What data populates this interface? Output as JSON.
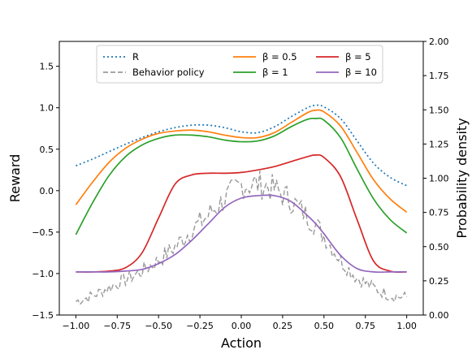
{
  "chart_data": {
    "type": "line",
    "xlabel": "Action",
    "ylabel_left": "Reward",
    "ylabel_right": "Probability density",
    "xlim": [
      -1.1,
      1.1
    ],
    "ylim_left": [
      -1.5,
      1.8
    ],
    "ylim_right": [
      0.0,
      2.0
    ],
    "xticks": [
      "−1.00",
      "−0.75",
      "−0.50",
      "−0.25",
      "0.00",
      "0.25",
      "0.50",
      "0.75",
      "1.00"
    ],
    "yticks_left": [
      "−1.5",
      "−1.0",
      "−0.5",
      "0.0",
      "0.5",
      "1.0",
      "1.5"
    ],
    "yticks_right": [
      "0.00",
      "0.25",
      "0.50",
      "0.75",
      "1.00",
      "1.25",
      "1.50",
      "1.75",
      "2.00"
    ],
    "legend_position": "top-center",
    "x": [
      -1.0,
      -0.9,
      -0.8,
      -0.7,
      -0.6,
      -0.5,
      -0.4,
      -0.3,
      -0.2,
      -0.1,
      0.0,
      0.1,
      0.2,
      0.3,
      0.4,
      0.45,
      0.5,
      0.6,
      0.7,
      0.8,
      0.9,
      1.0
    ],
    "series": [
      {
        "name": "R",
        "axis": "left",
        "style": "dotted",
        "color": "#1f77b4",
        "values": [
          0.3,
          0.38,
          0.47,
          0.56,
          0.64,
          0.71,
          0.76,
          0.79,
          0.79,
          0.76,
          0.71,
          0.7,
          0.77,
          0.89,
          1.0,
          1.03,
          1.01,
          0.87,
          0.6,
          0.33,
          0.16,
          0.06
        ]
      },
      {
        "name": "Behavior policy",
        "axis": "right",
        "style": "dashed",
        "color": "#999999",
        "values": [
          0.1,
          0.14,
          0.2,
          0.26,
          0.32,
          0.4,
          0.5,
          0.62,
          0.73,
          0.85,
          0.95,
          0.96,
          0.92,
          0.84,
          0.72,
          0.66,
          0.58,
          0.4,
          0.27,
          0.2,
          0.14,
          0.13
        ]
      },
      {
        "name": "β = 0.5",
        "axis": "left",
        "style": "solid",
        "color": "#ff7f0e",
        "values": [
          -0.17,
          0.1,
          0.34,
          0.51,
          0.62,
          0.69,
          0.72,
          0.73,
          0.71,
          0.67,
          0.64,
          0.64,
          0.7,
          0.82,
          0.94,
          0.97,
          0.95,
          0.78,
          0.46,
          0.13,
          -0.1,
          -0.26
        ]
      },
      {
        "name": "β = 1",
        "axis": "left",
        "style": "solid",
        "color": "#2ca02c",
        "values": [
          -0.53,
          -0.15,
          0.18,
          0.41,
          0.55,
          0.63,
          0.67,
          0.67,
          0.65,
          0.61,
          0.59,
          0.6,
          0.66,
          0.77,
          0.86,
          0.87,
          0.85,
          0.64,
          0.26,
          -0.1,
          -0.35,
          -0.51
        ]
      },
      {
        "name": "β = 5",
        "axis": "left",
        "style": "solid",
        "color": "#d62728",
        "values": [
          -0.98,
          -0.98,
          -0.97,
          -0.93,
          -0.75,
          -0.33,
          0.08,
          0.19,
          0.21,
          0.21,
          0.22,
          0.25,
          0.29,
          0.35,
          0.41,
          0.43,
          0.4,
          0.17,
          -0.35,
          -0.85,
          -0.97,
          -0.98
        ]
      },
      {
        "name": "β = 10",
        "axis": "left",
        "style": "solid",
        "color": "#9467bd",
        "values": [
          -0.98,
          -0.98,
          -0.98,
          -0.97,
          -0.95,
          -0.88,
          -0.77,
          -0.6,
          -0.4,
          -0.2,
          -0.09,
          -0.06,
          -0.06,
          -0.13,
          -0.3,
          -0.4,
          -0.52,
          -0.78,
          -0.94,
          -0.98,
          -0.98,
          -0.98
        ]
      }
    ]
  }
}
